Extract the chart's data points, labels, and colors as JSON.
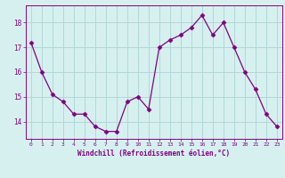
{
  "x": [
    0,
    1,
    2,
    3,
    4,
    5,
    6,
    7,
    8,
    9,
    10,
    11,
    12,
    13,
    14,
    15,
    16,
    17,
    18,
    19,
    20,
    21,
    22,
    23
  ],
  "y": [
    17.2,
    16.0,
    15.1,
    14.8,
    14.3,
    14.3,
    13.8,
    13.6,
    13.6,
    14.8,
    15.0,
    14.5,
    17.0,
    17.3,
    17.5,
    17.8,
    18.3,
    17.5,
    18.0,
    17.0,
    16.0,
    15.3,
    14.3,
    13.8
  ],
  "line_color": "#800080",
  "marker": "D",
  "marker_size": 2.5,
  "bg_color": "#d6f0f0",
  "grid_color": "#b0d8d8",
  "xlabel": "Windchill (Refroidissement éolien,°C)",
  "xlabel_color": "#800080",
  "tick_color": "#800080",
  "spine_color": "#800080",
  "ylim": [
    13.3,
    18.7
  ],
  "xlim": [
    -0.5,
    23.5
  ],
  "yticks": [
    14,
    15,
    16,
    17,
    18
  ],
  "title": ""
}
